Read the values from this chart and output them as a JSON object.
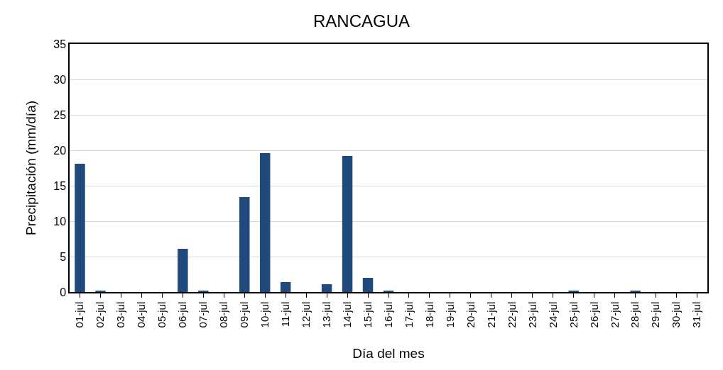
{
  "chart_data": {
    "type": "bar",
    "title": "RANCAGUA",
    "xlabel": "Día del mes",
    "ylabel": "Precipitación (mm/día)",
    "categories": [
      "01-jul",
      "02-jul",
      "03-jul",
      "04-jul",
      "05-jul",
      "06-jul",
      "07-jul",
      "08-jul",
      "09-jul",
      "10-jul",
      "11-jul",
      "12-jul",
      "13-jul",
      "14-jul",
      "15-jul",
      "16-jul",
      "17-jul",
      "18-jul",
      "19-jul",
      "20-jul",
      "21-jul",
      "22-jul",
      "23-jul",
      "24-jul",
      "25-jul",
      "26-jul",
      "27-jul",
      "28-jul",
      "29-jul",
      "30-jul",
      "31-jul"
    ],
    "values": [
      18.1,
      0.2,
      0,
      0,
      0,
      6.1,
      0.2,
      0,
      13.4,
      19.6,
      1.4,
      0,
      1.1,
      19.2,
      2.0,
      0.2,
      0,
      0,
      0,
      0,
      0,
      0,
      0,
      0,
      0.2,
      0,
      0,
      0.2,
      0,
      0,
      0
    ],
    "color": "#214a7c",
    "ylim": [
      0,
      35
    ],
    "yticks": [
      0,
      5,
      10,
      15,
      20,
      25,
      30,
      35
    ],
    "grid": "y"
  }
}
